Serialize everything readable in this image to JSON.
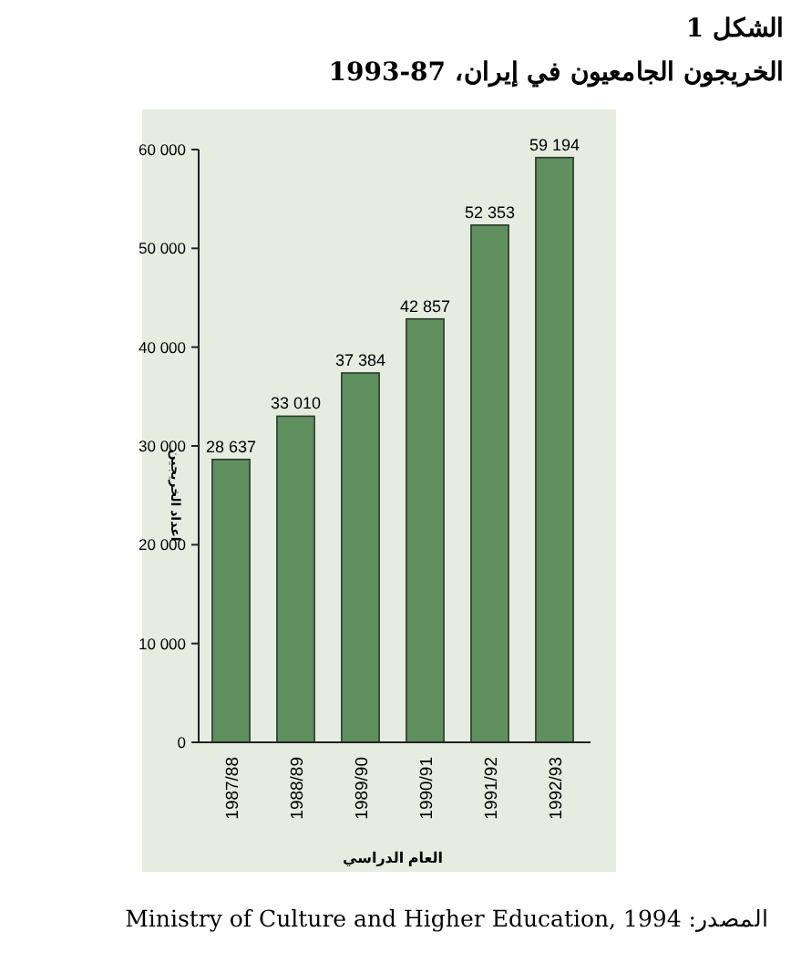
{
  "chart_data": {
    "type": "bar",
    "title": "الشكل 1",
    "subtitle": "الخريجون الجامعيون في إيران، 87-1993",
    "xlabel": "العام الدراسي",
    "ylabel": "اعداد الخريجين",
    "annotations": [
      "المصدر: Ministry of Culture and Higher Education, 1994"
    ],
    "categories": [
      "1987/88",
      "1988/89",
      "1989/90",
      "1990/91",
      "1991/92",
      "1992/93"
    ],
    "values": [
      28637,
      33010,
      37384,
      42857,
      52353,
      59194
    ],
    "color": "#5f8f5f",
    "value_labels": [
      "28 637",
      "33 010",
      "37 384",
      "42 857",
      "52 353",
      "59 194"
    ],
    "ylim": [
      0,
      60000
    ],
    "yticks": [
      {
        "value": 0,
        "label": "0"
      },
      {
        "value": 10000,
        "label": "10 000"
      },
      {
        "value": 20000,
        "label": "20 000"
      },
      {
        "value": 30000,
        "label": "30 000"
      },
      {
        "value": 40000,
        "label": "40 000"
      },
      {
        "value": 50000,
        "label": "50 000"
      },
      {
        "value": 60000,
        "label": "60 000"
      }
    ],
    "grid": false
  }
}
